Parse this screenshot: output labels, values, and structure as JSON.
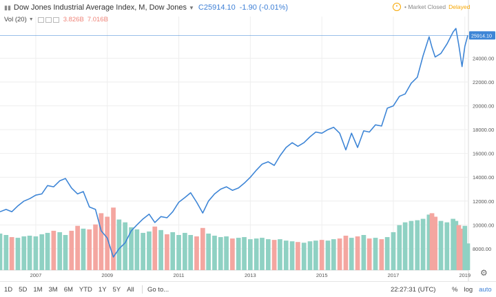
{
  "legend": {
    "title": "Dow Jones Industrial Average Index, M, Dow Jones",
    "price": "C25914.10",
    "change": "-1.90 (-0.01%)",
    "volume_label": "Vol (20)",
    "volume_value_1": "3.826B",
    "volume_value_2": "7.016B"
  },
  "status": {
    "market_text": "• Market Closed",
    "delayed_text": "Delayed"
  },
  "toolbar": {
    "ranges": [
      "1D",
      "5D",
      "1M",
      "3M",
      "6M",
      "YTD",
      "1Y",
      "5Y",
      "All"
    ],
    "goto_label": "Go to...",
    "time": "22:27:31 (UTC)",
    "percent_label": "%",
    "log_label": "log",
    "auto_label": "auto"
  },
  "icons": {
    "settings": "gear-icon",
    "chart_type": "bars-icon",
    "clock": "clock-icon"
  },
  "colors": {
    "line": "#3d85d6",
    "volume_up": "#8fd1c3",
    "volume_down": "#f4a6a0",
    "price_tag_bg": "#3d85d6",
    "delayed": "#f7a600"
  },
  "chart_data": {
    "type": "line",
    "title": "Dow Jones Industrial Average Index, M, Dow Jones",
    "xlabel": "",
    "ylabel": "",
    "x_tick_labels": [
      "2007",
      "2009",
      "2011",
      "2013",
      "2015",
      "2017",
      "2019"
    ],
    "y_tick_labels": [
      "8000.00",
      "10000.00",
      "12000.00",
      "14000.00",
      "16000.00",
      "18000.00",
      "20000.00",
      "22000.00",
      "24000.00"
    ],
    "last_value_label": "25914.10",
    "ylim": [
      6200,
      27500
    ],
    "xlim": [
      2006.0,
      2019.1
    ],
    "grid": true,
    "series": [
      {
        "name": "Dow Jones Industrial Average Index",
        "x": [
          2006.0,
          2006.17,
          2006.33,
          2006.5,
          2006.67,
          2006.83,
          2007.0,
          2007.17,
          2007.33,
          2007.5,
          2007.67,
          2007.83,
          2008.0,
          2008.17,
          2008.33,
          2008.5,
          2008.67,
          2008.83,
          2009.0,
          2009.17,
          2009.33,
          2009.5,
          2009.67,
          2009.83,
          2010.0,
          2010.17,
          2010.33,
          2010.5,
          2010.67,
          2010.83,
          2011.0,
          2011.17,
          2011.33,
          2011.5,
          2011.67,
          2011.83,
          2012.0,
          2012.17,
          2012.33,
          2012.5,
          2012.67,
          2012.83,
          2013.0,
          2013.17,
          2013.33,
          2013.5,
          2013.67,
          2013.83,
          2014.0,
          2014.17,
          2014.33,
          2014.5,
          2014.67,
          2014.83,
          2015.0,
          2015.17,
          2015.33,
          2015.5,
          2015.67,
          2015.83,
          2016.0,
          2016.17,
          2016.33,
          2016.5,
          2016.67,
          2016.83,
          2017.0,
          2017.17,
          2017.33,
          2017.5,
          2017.67,
          2017.83,
          2018.0,
          2018.08,
          2018.17,
          2018.33,
          2018.5,
          2018.67,
          2018.75,
          2018.83,
          2018.92,
          2019.0,
          2019.08
        ],
        "values": [
          11100,
          11300,
          11100,
          11600,
          12000,
          12200,
          12500,
          12600,
          13300,
          13200,
          13700,
          13900,
          13100,
          12600,
          12800,
          11500,
          11300,
          9500,
          8900,
          7300,
          8000,
          8500,
          9500,
          10000,
          10500,
          10900,
          10200,
          10700,
          10600,
          11100,
          11900,
          12300,
          12700,
          11900,
          11000,
          12000,
          12600,
          13000,
          13200,
          12900,
          13100,
          13500,
          14000,
          14600,
          15100,
          15300,
          15000,
          15800,
          16500,
          16900,
          16600,
          16900,
          17400,
          17800,
          17700,
          18000,
          18200,
          17700,
          16300,
          17700,
          16500,
          17900,
          17800,
          18400,
          18300,
          19800,
          20000,
          20800,
          21000,
          21900,
          22400,
          24200,
          25800,
          24900,
          24100,
          24400,
          25200,
          26200,
          26500,
          25100,
          23300,
          25000,
          25914
        ]
      },
      {
        "name": "Vol (20)",
        "values_billions": [
          5.2,
          5.0,
          4.7,
          4.6,
          4.8,
          4.9,
          4.8,
          5.1,
          5.3,
          5.6,
          5.4,
          5.0,
          5.6,
          6.3,
          5.9,
          5.8,
          6.5,
          8.1,
          7.6,
          8.9,
          7.2,
          6.8,
          6.1,
          5.8,
          5.3,
          5.5,
          6.2,
          5.7,
          5.1,
          5.4,
          5.0,
          5.3,
          5.0,
          4.8,
          6.0,
          5.2,
          4.9,
          4.7,
          4.8,
          4.5,
          4.6,
          4.7,
          4.4,
          4.5,
          4.6,
          4.4,
          4.3,
          4.4,
          4.2,
          4.1,
          4.0,
          3.9,
          4.1,
          4.2,
          4.3,
          4.2,
          4.4,
          4.5,
          4.9,
          4.6,
          4.8,
          5.0,
          4.5,
          4.6,
          4.4,
          4.7,
          5.4,
          6.4,
          6.8,
          7.0,
          7.1,
          7.3,
          7.9,
          8.1,
          7.6,
          7.0,
          6.8,
          7.3,
          7.0,
          6.4,
          5.9,
          6.3,
          3.8
        ],
        "up": [
          1,
          1,
          0,
          1,
          1,
          1,
          1,
          1,
          1,
          0,
          1,
          1,
          0,
          0,
          1,
          0,
          0,
          0,
          0,
          0,
          1,
          1,
          1,
          1,
          1,
          1,
          0,
          1,
          0,
          1,
          1,
          1,
          1,
          0,
          0,
          1,
          1,
          1,
          1,
          0,
          1,
          1,
          1,
          1,
          1,
          1,
          0,
          1,
          1,
          1,
          0,
          1,
          1,
          1,
          0,
          1,
          1,
          0,
          0,
          1,
          0,
          1,
          0,
          1,
          0,
          1,
          1,
          1,
          1,
          1,
          1,
          1,
          1,
          0,
          0,
          1,
          1,
          1,
          1,
          0,
          0,
          1,
          1
        ]
      }
    ]
  }
}
